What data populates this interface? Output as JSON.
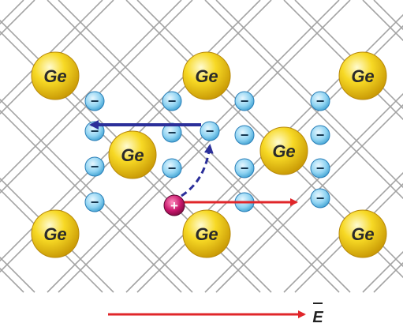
{
  "atom_label": "Ge",
  "electron_symbol": "−",
  "hole_symbol": "+",
  "field_label": "E",
  "colors": {
    "lattice_line": "#9a9a9a",
    "atom_fill": "#f5d21c",
    "atom_highlight": "#fff7b0",
    "electron_fill": "#8fd3f2",
    "electron_stroke": "#2a7fb8",
    "hole_fill": "#c8166c",
    "electron_motion_arrow": "#2b2f9a",
    "hole_motion_arrow": "#e0262a",
    "field_arrow": "#e0262a"
  }
}
